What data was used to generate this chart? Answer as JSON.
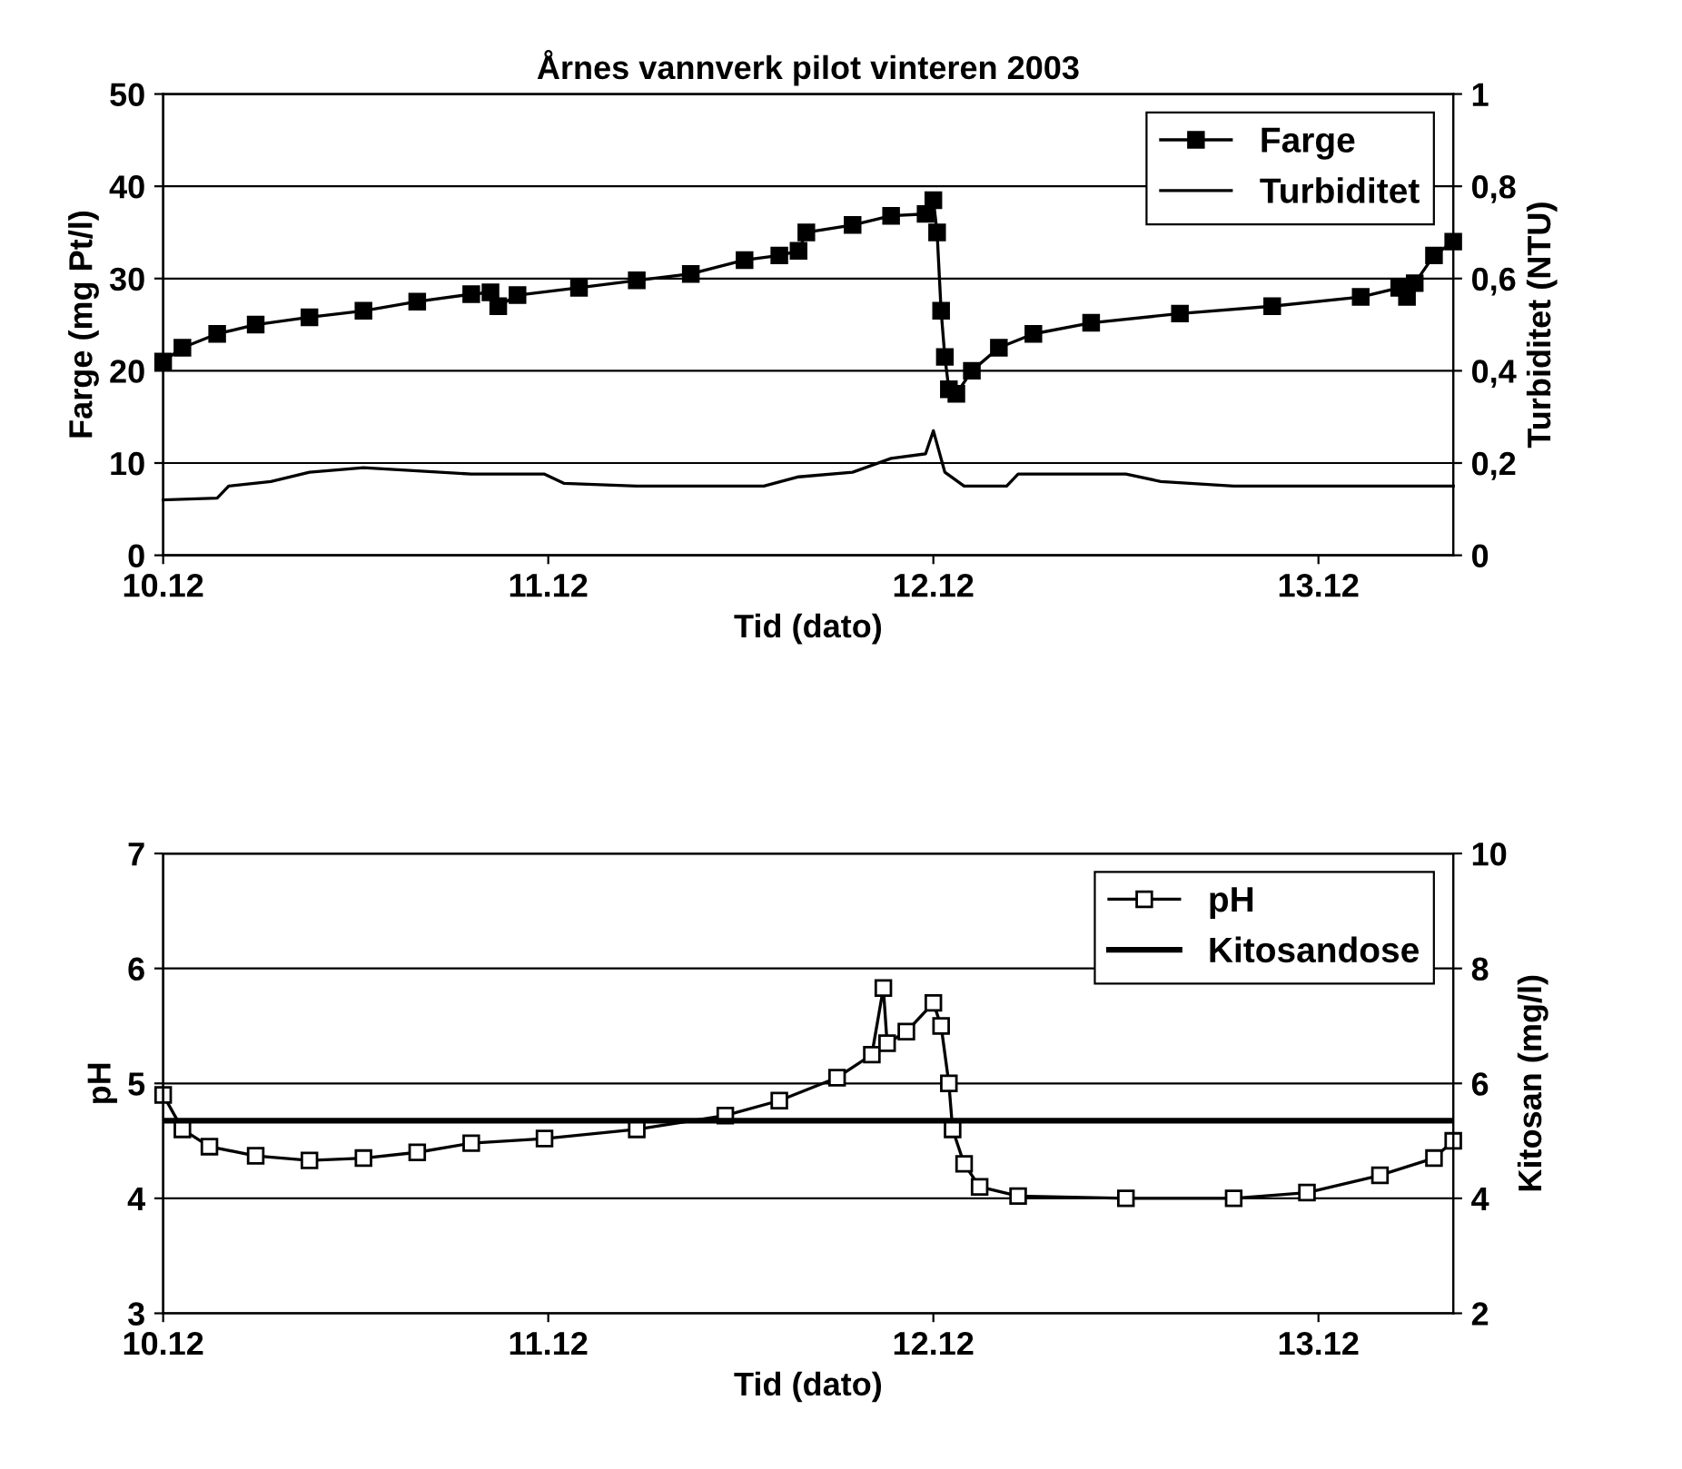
{
  "chart_data": [
    {
      "type": "line",
      "title": "Årnes vannverk pilot vinteren 2003",
      "xlabel": "Tid (dato)",
      "ylabel": "Farge (mg Pt/l)",
      "y2label": "Turbiditet (NTU)",
      "xlim": [
        "2003-12-10T00:00",
        "2003-12-13T08:24"
      ],
      "xticks": [
        {
          "value": "2003-12-10",
          "label": "10.12"
        },
        {
          "value": "2003-12-11",
          "label": "11.12"
        },
        {
          "value": "2003-12-12",
          "label": "12.12"
        },
        {
          "value": "2003-12-13",
          "label": "13.12"
        }
      ],
      "ylim": [
        0,
        50
      ],
      "yticks": [
        0,
        10,
        20,
        30,
        40,
        50
      ],
      "y2lim": [
        0,
        1
      ],
      "y2ticks": [
        {
          "value": 0,
          "label": "0"
        },
        {
          "value": 0.2,
          "label": "0,2"
        },
        {
          "value": 0.4,
          "label": "0,4"
        },
        {
          "value": 0.6,
          "label": "0,6"
        },
        {
          "value": 0.8,
          "label": "0,8"
        },
        {
          "value": 1,
          "label": "1"
        }
      ],
      "grid": "y",
      "legend": "top right",
      "series": [
        {
          "name": "Farge",
          "color": "#000000",
          "marker": "square",
          "x": [
            "2003-12-10T00:00",
            "2003-12-10T01:12",
            "2003-12-10T03:22",
            "2003-12-10T05:46",
            "2003-12-10T09:07",
            "2003-12-10T12:29",
            "2003-12-10T15:50",
            "2003-12-10T19:12",
            "2003-12-10T20:24",
            "2003-12-10T20:53",
            "2003-12-10T22:05",
            "2003-12-11T01:55",
            "2003-12-11T05:31",
            "2003-12-11T08:53",
            "2003-12-11T12:14",
            "2003-12-11T14:24",
            "2003-12-11T15:36",
            "2003-12-11T16:05",
            "2003-12-11T18:58",
            "2003-12-11T21:22",
            "2003-12-11T23:31",
            "2003-12-12T00:00",
            "2003-12-12T00:14",
            "2003-12-12T00:29",
            "2003-12-12T00:43",
            "2003-12-12T00:58",
            "2003-12-12T01:26",
            "2003-12-12T02:24",
            "2003-12-12T04:05",
            "2003-12-12T06:14",
            "2003-12-12T09:50",
            "2003-12-12T15:22",
            "2003-12-12T21:07",
            "2003-12-13T02:38",
            "2003-12-13T05:02",
            "2003-12-13T05:31",
            "2003-12-13T06:00",
            "2003-12-13T07:12",
            "2003-12-13T08:24"
          ],
          "values": [
            21,
            22.5,
            24,
            25,
            25.8,
            26.5,
            27.5,
            28.3,
            28.5,
            27,
            28.2,
            29,
            29.8,
            30.5,
            32,
            32.5,
            33,
            35,
            35.8,
            36.8,
            37,
            38.5,
            35,
            26.5,
            21.5,
            18,
            17.5,
            20,
            22.5,
            24,
            25.2,
            26.2,
            27,
            28,
            29,
            28,
            29.5,
            32.5,
            34
          ]
        },
        {
          "name": "Turbiditet",
          "color": "#000000",
          "axis": "y2",
          "x": [
            "2003-12-10T00:00",
            "2003-12-10T03:22",
            "2003-12-10T04:05",
            "2003-12-10T06:43",
            "2003-12-10T09:07",
            "2003-12-10T12:29",
            "2003-12-10T19:12",
            "2003-12-10T23:46",
            "2003-12-11T00:58",
            "2003-12-11T05:31",
            "2003-12-11T13:26",
            "2003-12-11T15:36",
            "2003-12-11T18:58",
            "2003-12-11T21:22",
            "2003-12-11T23:31",
            "2003-12-12T00:00",
            "2003-12-12T00:43",
            "2003-12-12T01:55",
            "2003-12-12T04:34",
            "2003-12-12T05:17",
            "2003-12-12T12:00",
            "2003-12-12T14:10",
            "2003-12-12T18:43",
            "2003-12-13T08:24"
          ],
          "values": [
            0.12,
            0.124,
            0.15,
            0.16,
            0.18,
            0.19,
            0.176,
            0.176,
            0.156,
            0.15,
            0.15,
            0.17,
            0.18,
            0.21,
            0.22,
            0.27,
            0.18,
            0.15,
            0.15,
            0.176,
            0.176,
            0.16,
            0.15,
            0.15
          ]
        }
      ]
    },
    {
      "type": "line",
      "xlabel": "Tid (dato)",
      "ylabel": "pH",
      "y2label": "Kitosan (mg/l)",
      "xlim": [
        "2003-12-10T00:00",
        "2003-12-13T08:24"
      ],
      "xticks": [
        {
          "value": "2003-12-10",
          "label": "10.12"
        },
        {
          "value": "2003-12-11",
          "label": "11.12"
        },
        {
          "value": "2003-12-12",
          "label": "12.12"
        },
        {
          "value": "2003-12-13",
          "label": "13.12"
        }
      ],
      "ylim": [
        3,
        7
      ],
      "yticks": [
        3,
        4,
        5,
        6,
        7
      ],
      "y2lim": [
        2,
        10
      ],
      "y2ticks": [
        2,
        4,
        6,
        8,
        10
      ],
      "grid": "y",
      "legend": "top right",
      "ref_lines": [
        {
          "axis": "y2",
          "value": 5.35,
          "label": "Kitosandose",
          "color": "#000000"
        }
      ],
      "series": [
        {
          "name": "pH",
          "color": "#000000",
          "marker": "square",
          "x": [
            "2003-12-10T00:00",
            "2003-12-10T01:12",
            "2003-12-10T02:53",
            "2003-12-10T05:46",
            "2003-12-10T09:07",
            "2003-12-10T12:29",
            "2003-12-10T15:50",
            "2003-12-10T19:12",
            "2003-12-10T23:46",
            "2003-12-11T05:31",
            "2003-12-11T11:02",
            "2003-12-11T14:24",
            "2003-12-11T18:00",
            "2003-12-11T20:10",
            "2003-12-11T20:53",
            "2003-12-11T21:07",
            "2003-12-11T22:19",
            "2003-12-12T00:00",
            "2003-12-12T00:29",
            "2003-12-12T00:58",
            "2003-12-12T01:12",
            "2003-12-12T01:55",
            "2003-12-12T02:53",
            "2003-12-12T05:17",
            "2003-12-12T12:00",
            "2003-12-12T18:43",
            "2003-12-12T23:17",
            "2003-12-13T03:50",
            "2003-12-13T07:12",
            "2003-12-13T08:24"
          ],
          "values": [
            4.9,
            4.6,
            4.45,
            4.37,
            4.33,
            4.35,
            4.4,
            4.48,
            4.52,
            4.6,
            4.72,
            4.85,
            5.05,
            5.25,
            5.83,
            5.35,
            5.45,
            5.7,
            5.5,
            5.0,
            4.6,
            4.3,
            4.1,
            4.02,
            4.0,
            4.0,
            4.05,
            4.2,
            4.35,
            4.5
          ]
        }
      ]
    }
  ]
}
